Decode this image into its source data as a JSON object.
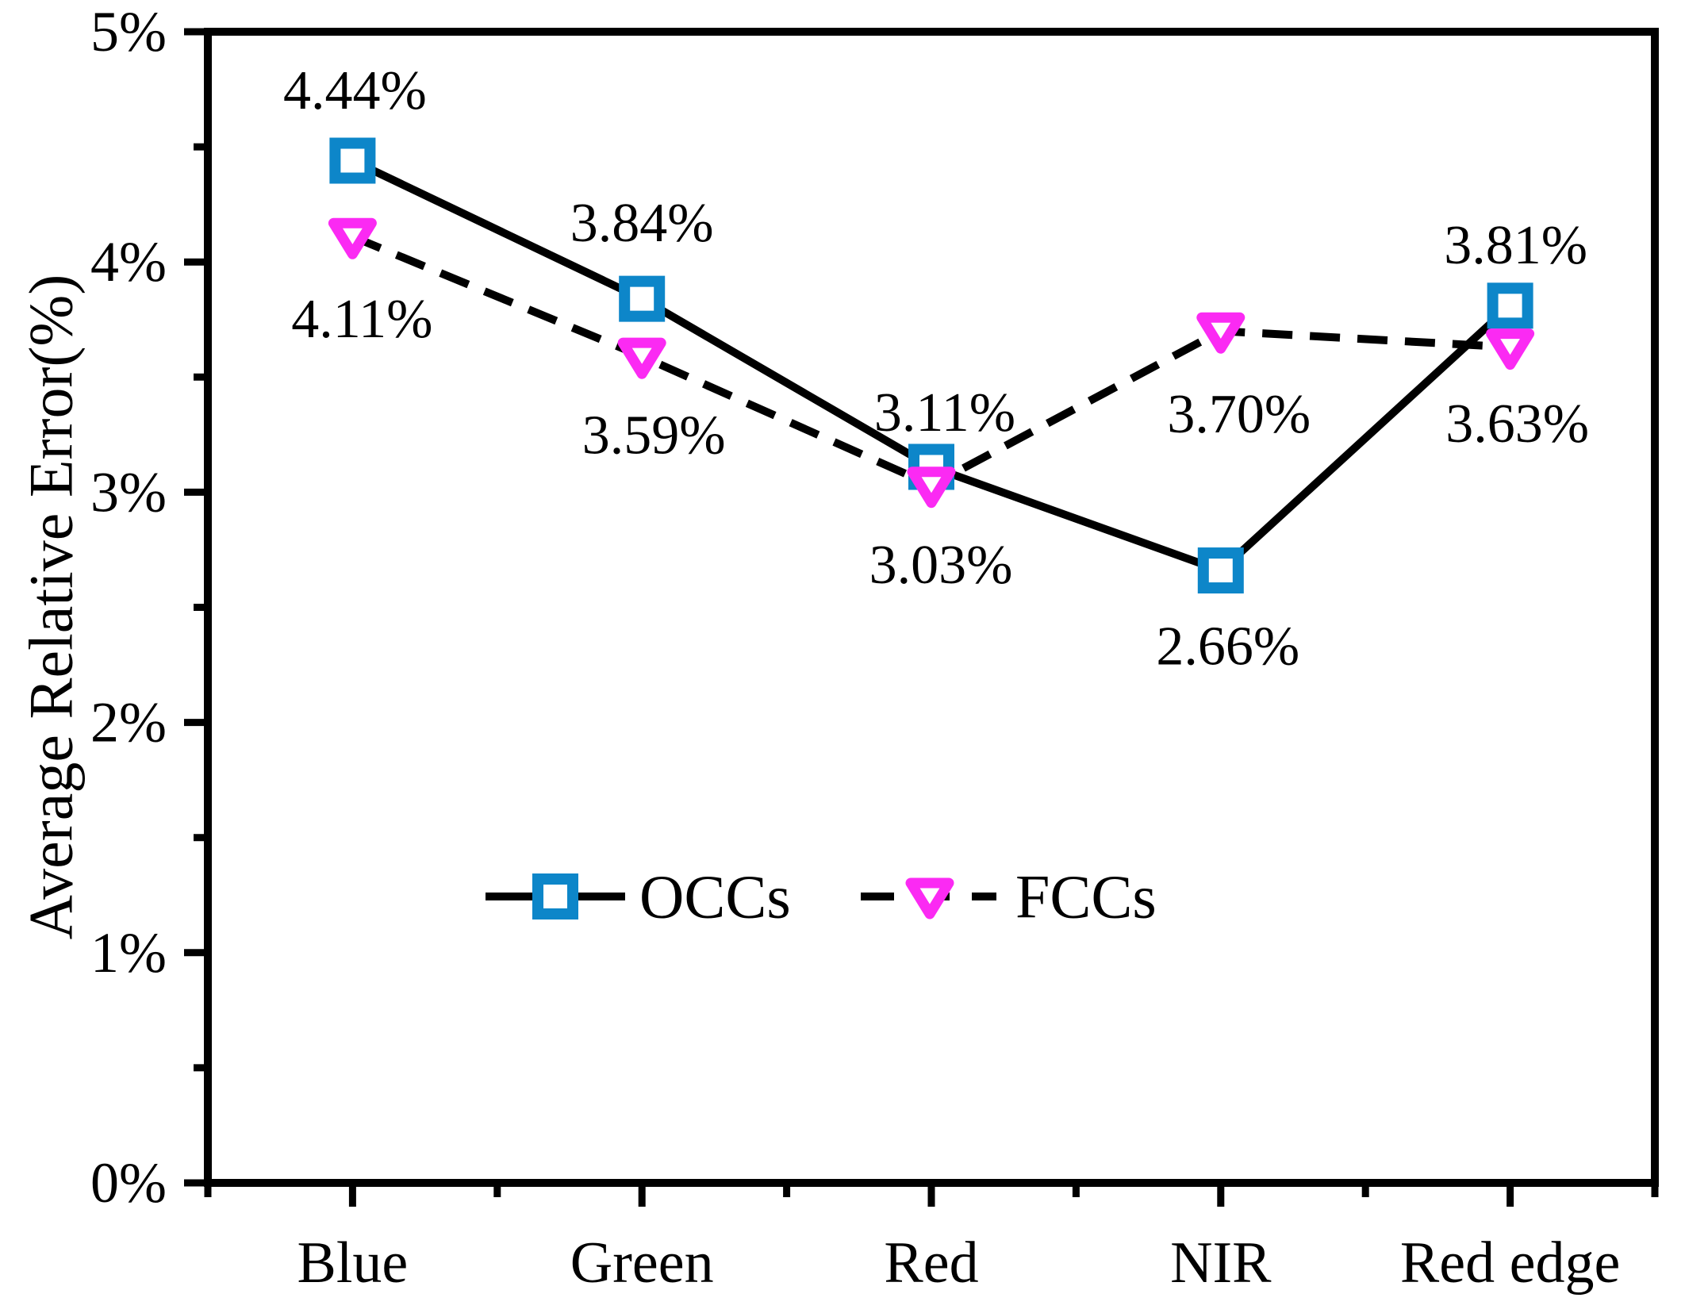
{
  "figure": {
    "background": "#ffffff",
    "text_color": "#000000",
    "axis_color": "#000000"
  },
  "chart_data": {
    "type": "line",
    "title": "",
    "xlabel": "",
    "ylabel": "Average Relative Error(%)",
    "categories": [
      "Blue",
      "Green",
      "Red",
      "NIR",
      "Red edge"
    ],
    "ylim": [
      0,
      5
    ],
    "y_major_step": 1,
    "y_minor_step": 0.5,
    "y_tick_labels": [
      "0%",
      "1%",
      "2%",
      "3%",
      "4%",
      "5%"
    ],
    "x_minor_ticks_between_categories": true,
    "grid": false,
    "legend_position": "inside-bottom-center",
    "series": [
      {
        "name": "OCCs",
        "values": [
          4.44,
          3.84,
          3.11,
          2.66,
          3.81
        ],
        "point_labels": [
          "4.44%",
          "3.84%",
          "3.11%",
          "2.66%",
          "3.81%"
        ],
        "marker": "square",
        "marker_color": "#0d86c9",
        "line_style": "solid",
        "line_color": "#000000",
        "label_dx": [
          3,
          0,
          17,
          9,
          7
        ],
        "label_dy": [
          -88,
          -95,
          -68,
          96,
          -76
        ]
      },
      {
        "name": "FCCs",
        "values": [
          4.11,
          3.59,
          3.03,
          3.7,
          3.63
        ],
        "point_labels": [
          "4.11%",
          "3.59%",
          "3.03%",
          "3.70%",
          "3.63%"
        ],
        "marker": "triangle-down",
        "marker_color": "#fb2af3",
        "line_style": "dashed",
        "line_color": "#000000",
        "label_dx": [
          12,
          15,
          12,
          23,
          9
        ],
        "label_dy": [
          104,
          100,
          101,
          105,
          97
        ]
      }
    ]
  }
}
